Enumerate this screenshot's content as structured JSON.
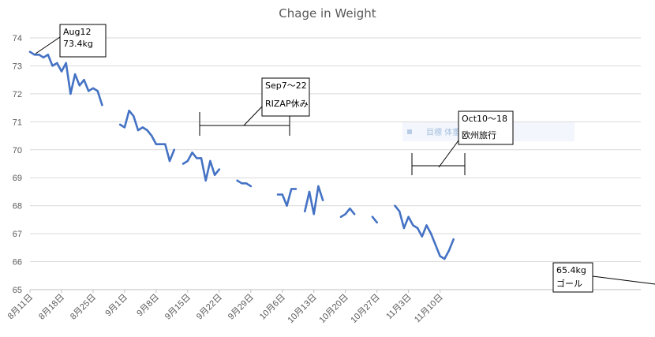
{
  "chart_data": {
    "type": "line",
    "title": "Chage in Weight",
    "xlabel": "",
    "ylabel": "",
    "ylim": [
      65,
      74
    ],
    "yticks": [
      65,
      66,
      67,
      68,
      69,
      70,
      71,
      72,
      73,
      74
    ],
    "x_tick_labels": [
      "8月11日",
      "8月18日",
      "8月25日",
      "9月1日",
      "9月8日",
      "9月15日",
      "9月22日",
      "9月29日",
      "10月6日",
      "10月13日",
      "10月20日",
      "10月27日",
      "11月3日",
      "11月10日"
    ],
    "grid": true,
    "line_color": "#4472c4",
    "legend_text": "目標 体重 推移",
    "series": [
      {
        "x": [
          "08-11",
          "08-12",
          "08-13",
          "08-14",
          "08-15",
          "08-16",
          "08-17",
          "08-18",
          "08-19",
          "08-20",
          "08-21",
          "08-22",
          "08-23",
          "08-24",
          "08-25",
          "08-26",
          "08-27",
          "08-31",
          "09-01",
          "09-02",
          "09-03",
          "09-04",
          "09-05",
          "09-06",
          "09-07",
          "09-08",
          "09-09",
          "09-10",
          "09-11",
          "09-12",
          "09-14",
          "09-15",
          "09-16",
          "09-17",
          "09-18",
          "09-19",
          "09-20",
          "09-21",
          "09-22",
          "09-26",
          "09-27",
          "09-28",
          "09-29",
          "10-05",
          "10-06",
          "10-07",
          "10-08",
          "10-09",
          "10-11",
          "10-12",
          "10-13",
          "10-14",
          "10-15",
          "10-19",
          "10-20",
          "10-21",
          "10-22",
          "10-26",
          "10-27",
          "10-31",
          "11-01",
          "11-02",
          "11-03",
          "11-04",
          "11-05",
          "11-06",
          "11-07",
          "11-08",
          "11-09",
          "11-10",
          "11-11",
          "11-12",
          "11-13"
        ],
        "values": [
          73.5,
          73.4,
          73.4,
          73.3,
          73.4,
          73.0,
          73.1,
          72.8,
          73.1,
          72.0,
          72.7,
          72.3,
          72.5,
          72.1,
          72.2,
          72.1,
          71.6,
          70.9,
          70.8,
          71.4,
          71.2,
          70.7,
          70.8,
          70.7,
          70.5,
          70.2,
          70.2,
          70.2,
          69.6,
          70.0,
          69.5,
          69.6,
          69.9,
          69.7,
          69.7,
          68.9,
          69.6,
          69.1,
          69.3,
          68.9,
          68.8,
          68.8,
          68.7,
          68.4,
          68.4,
          68.0,
          68.6,
          68.6,
          67.8,
          68.5,
          67.7,
          68.7,
          68.2,
          67.6,
          67.7,
          67.9,
          67.7,
          67.6,
          67.4,
          68.0,
          67.8,
          67.2,
          67.6,
          67.3,
          67.2,
          66.9,
          67.3,
          67.0,
          66.6,
          66.2,
          66.1,
          66.4,
          66.8
        ],
        "segment_breaks_after": [
          "08-27",
          "09-12",
          "09-22",
          "09-29",
          "10-09",
          "10-15",
          "10-22",
          "10-27"
        ]
      }
    ],
    "annotations": [
      {
        "lines": [
          "Aug12",
          "73.4kg"
        ]
      },
      {
        "lines": [
          "Sep7～22",
          "RIZAP休み"
        ]
      },
      {
        "lines": [
          "Oct10～18",
          "欧州旅行"
        ]
      },
      {
        "lines": [
          "65.4kg",
          "ゴール"
        ]
      }
    ]
  }
}
